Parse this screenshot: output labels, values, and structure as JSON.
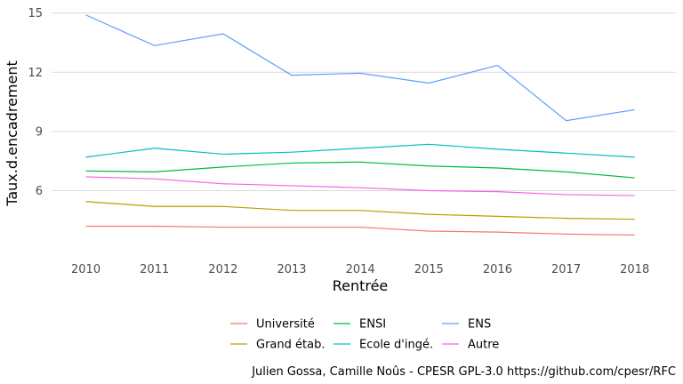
{
  "chart_data": {
    "type": "line",
    "title": "",
    "xlabel": "Rentrée",
    "ylabel": "Taux.d.encadrement",
    "x": [
      2010,
      2011,
      2012,
      2013,
      2014,
      2015,
      2016,
      2017,
      2018
    ],
    "xlim": [
      2009.5,
      2018.6
    ],
    "ylim": [
      2.6,
      15.3
    ],
    "yticks": [
      6,
      9,
      12,
      15
    ],
    "grid": "horizontal",
    "legend_position": "bottom",
    "legend_order": [
      "Université",
      "Grand étab.",
      "ENSI",
      "Ecole d'ingé.",
      "ENS",
      "Autre"
    ],
    "series": [
      {
        "name": "ENS",
        "color": "#619cff",
        "values": [
          14.9,
          13.35,
          13.95,
          11.85,
          11.95,
          11.45,
          12.35,
          9.55,
          10.1
        ]
      },
      {
        "name": "Ecole d'ingé.",
        "color": "#00bfc4",
        "values": [
          7.7,
          8.15,
          7.85,
          7.95,
          8.15,
          8.35,
          8.1,
          7.9,
          7.7
        ]
      },
      {
        "name": "ENSI",
        "color": "#00ba38",
        "values": [
          7.0,
          6.95,
          7.2,
          7.4,
          7.45,
          7.25,
          7.15,
          6.95,
          6.65
        ]
      },
      {
        "name": "Autre",
        "color": "#f564e3",
        "values": [
          6.7,
          6.6,
          6.35,
          6.25,
          6.15,
          6.0,
          5.95,
          5.8,
          5.75
        ]
      },
      {
        "name": "Grand étab.",
        "color": "#b79f00",
        "values": [
          5.45,
          5.2,
          5.2,
          5.0,
          5.0,
          4.8,
          4.7,
          4.6,
          4.55
        ]
      },
      {
        "name": "Université",
        "color": "#f8766d",
        "values": [
          4.2,
          4.2,
          4.15,
          4.15,
          4.15,
          3.95,
          3.9,
          3.8,
          3.75
        ]
      }
    ]
  },
  "caption": "Julien Gossa, Camille Noûs - CPESR GPL-3.0 https://github.com/cpesr/RFC"
}
